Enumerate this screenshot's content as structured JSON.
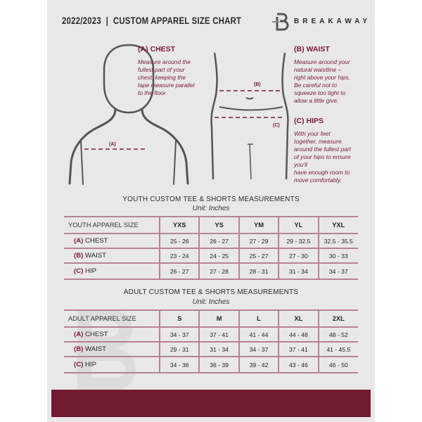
{
  "header": {
    "title": "2022/2023  |  CUSTOM APPAREL SIZE CHART",
    "brand": "BREAKAWAY",
    "logo_letter": "B"
  },
  "measures": {
    "chest": {
      "heading": "(A) CHEST",
      "desc": [
        "Measure around the",
        "fullest part of your",
        "chest, keeping the",
        "tape measure parallel",
        "to the floor"
      ],
      "marker": "(A)"
    },
    "waist": {
      "heading": "(B) WAIST",
      "desc": [
        "Measure around your",
        "natural waistline –",
        "right above your hips.",
        "Be careful not to",
        "squeeze too tight to",
        "allow a little give."
      ],
      "marker": "(B)"
    },
    "hips": {
      "heading": "(C) HIPS",
      "desc": [
        "With your feet",
        "together, measure",
        "around the fullest part",
        "of your hips to ensure",
        "you'll",
        "have enough room to",
        "move comfortably."
      ],
      "marker": "(C)"
    }
  },
  "colors": {
    "accent": "#7a1a30",
    "footer": "#721c31",
    "page": "#e8e8e9"
  },
  "youth": {
    "title": "YOUTH CUSTOM TEE & SHORTS MEASUREMENTS",
    "unit": "Unit: Inches",
    "header_label": "YOUTH APPAREL SIZE",
    "sizes": [
      "YXS",
      "YS",
      "YM",
      "YL",
      "YXL"
    ],
    "rows": [
      {
        "code": "(A)",
        "name": "CHEST",
        "values": [
          "25 - 26",
          "26 - 27",
          "27 - 29",
          "29 - 32.5",
          "32.5 - 35.5"
        ]
      },
      {
        "code": "(B)",
        "name": "WAIST",
        "values": [
          "23 - 24",
          "24 - 25",
          "25 - 27",
          "27 - 30",
          "30 - 33"
        ]
      },
      {
        "code": "(C)",
        "name": "HIP",
        "values": [
          "26 - 27",
          "27 - 28",
          "28 - 31",
          "31 - 34",
          "34 - 37"
        ]
      }
    ]
  },
  "adult": {
    "title": "ADULT CUSTOM TEE & SHORTS MEASUREMENTS",
    "unit": "Unit: Inches",
    "header_label": "ADULT APPAREL SIZE",
    "sizes": [
      "S",
      "M",
      "L",
      "XL",
      "2XL"
    ],
    "rows": [
      {
        "code": "(A)",
        "name": "CHEST",
        "values": [
          "34 - 37",
          "37 - 41",
          "41 - 44",
          "44 - 48",
          "48 - 52"
        ]
      },
      {
        "code": "(B)",
        "name": "WAIST",
        "values": [
          "29 - 31",
          "31 - 34",
          "34 - 37",
          "37 - 41",
          "41 - 45.5"
        ]
      },
      {
        "code": "(C)",
        "name": "HIP",
        "values": [
          "34 - 36",
          "36 - 39",
          "39 - 42",
          "43 - 46",
          "46 - 50"
        ]
      }
    ]
  }
}
